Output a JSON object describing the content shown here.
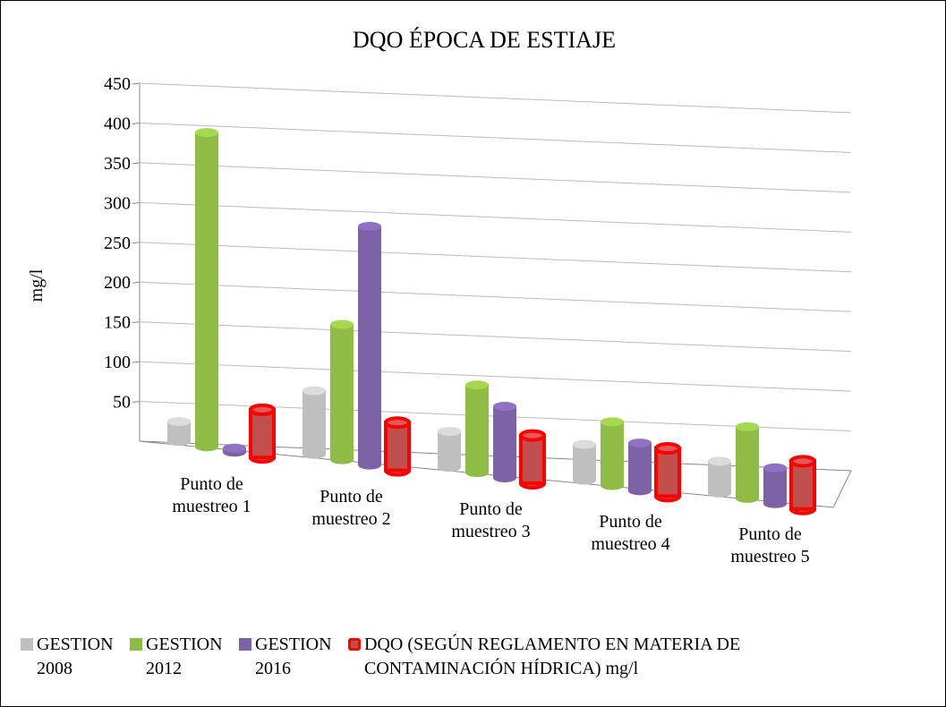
{
  "chart_data": {
    "type": "bar",
    "title": "DQO ÉPOCA DE ESTIAJE",
    "y_label": "mg/l",
    "categories": [
      "Punto de muestreo 1",
      "Punto de muestreo 2",
      "Punto de muestreo 3",
      "Punto de muestreo 4",
      "Punto de muestreo 5"
    ],
    "series": [
      {
        "name": "GESTION 2008",
        "color": "#bfbfbf",
        "values": [
          25,
          80,
          45,
          45,
          40
        ]
      },
      {
        "name": "GESTION 2012",
        "color": "#8fbc45",
        "values": [
          395,
          170,
          110,
          80,
          90
        ]
      },
      {
        "name": "GESTION 2016",
        "color": "#7e62a8",
        "values": [
          5,
          300,
          90,
          60,
          45
        ]
      },
      {
        "name": "DQO (SEGÚN REGLAMENTO EN MATERIA DE CONTAMINACIÓN HÍDRICA) mg/l",
        "color": "#c0504d",
        "outline": "#ff0000",
        "values": [
          60,
          60,
          60,
          60,
          60
        ]
      }
    ],
    "ylim": [
      0,
      450
    ],
    "yticks": [
      50,
      100,
      150,
      200,
      250,
      300,
      350,
      400,
      450
    ],
    "grid": true
  }
}
